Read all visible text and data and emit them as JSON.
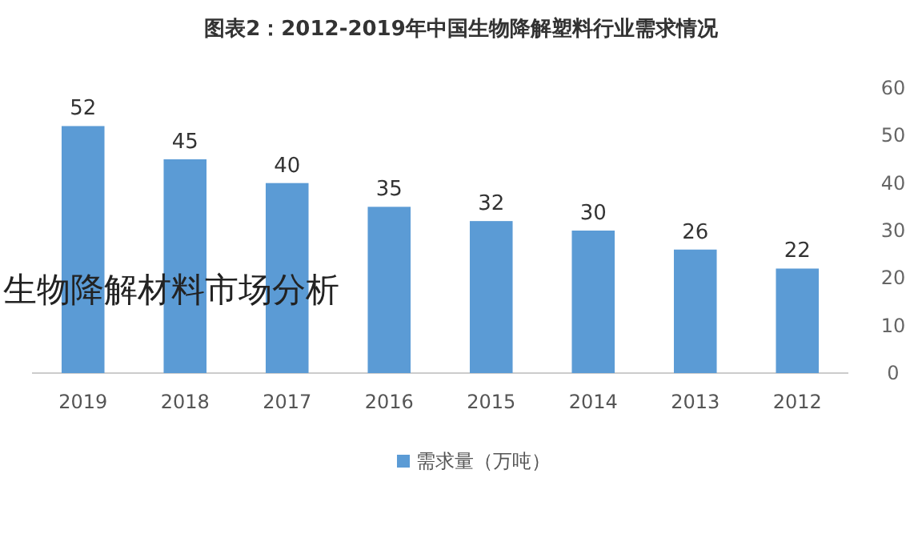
{
  "chart_data": {
    "type": "bar",
    "title": "图表2：2012-2019年中国生物降解塑料行业需求情况",
    "categories": [
      "2019",
      "2018",
      "2017",
      "2016",
      "2015",
      "2014",
      "2013",
      "2012"
    ],
    "series": [
      {
        "name": "需求量（万吨）",
        "color": "#5b9bd5",
        "values": [
          52,
          45,
          40,
          35,
          32,
          30,
          26,
          22
        ]
      }
    ],
    "ylim": [
      0,
      60
    ],
    "yticks": [
      0,
      10,
      20,
      30,
      40,
      50,
      60
    ],
    "data_labels": true,
    "legend": "bottom",
    "grid": false,
    "annotations": [
      "生物降解材料市场分析"
    ]
  }
}
